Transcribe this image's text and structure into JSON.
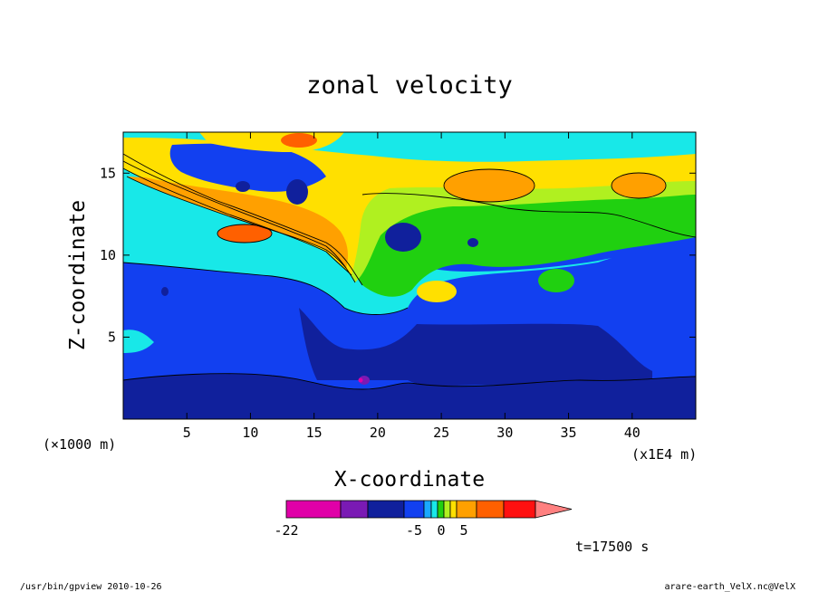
{
  "chart_data": {
    "type": "heatmap",
    "title": "zonal velocity",
    "xlabel": "X-coordinate",
    "ylabel": "Z-coordinate",
    "x_unit": "(×1000 m)",
    "x_unit_secondary": "(x1E4 m)",
    "xlim": [
      0,
      45
    ],
    "ylim": [
      0,
      17.5
    ],
    "x_ticks": [
      5,
      10,
      15,
      20,
      25,
      30,
      35,
      40
    ],
    "y_ticks": [
      5,
      10,
      15
    ],
    "colorbar": {
      "tick_labels": [
        "-22",
        "-5",
        "0",
        "5"
      ],
      "levels": [
        -22,
        -15,
        -10,
        -5,
        -3,
        -1,
        0,
        1,
        3,
        5,
        10,
        15
      ],
      "colors": [
        "#e000a8",
        "#7a1ab4",
        "#10209c",
        "#1240f0",
        "#1aa8ff",
        "#18e8e8",
        "#20d010",
        "#b0f020",
        "#ffe000",
        "#ffa000",
        "#ff6000",
        "#ff1010",
        "#ff8080"
      ]
    },
    "regions_u": {
      "far_low_jet": -15,
      "low_layer": -10,
      "mid_layer": -5,
      "upper_core": 5,
      "upper_max": 10,
      "stratosphere_max": 5
    }
  },
  "annotations": {
    "time": "t=17500 s",
    "footer_left": "/usr/bin/gpview  2010-10-26",
    "footer_right": "arare-earth_VelX.nc@VelX"
  }
}
